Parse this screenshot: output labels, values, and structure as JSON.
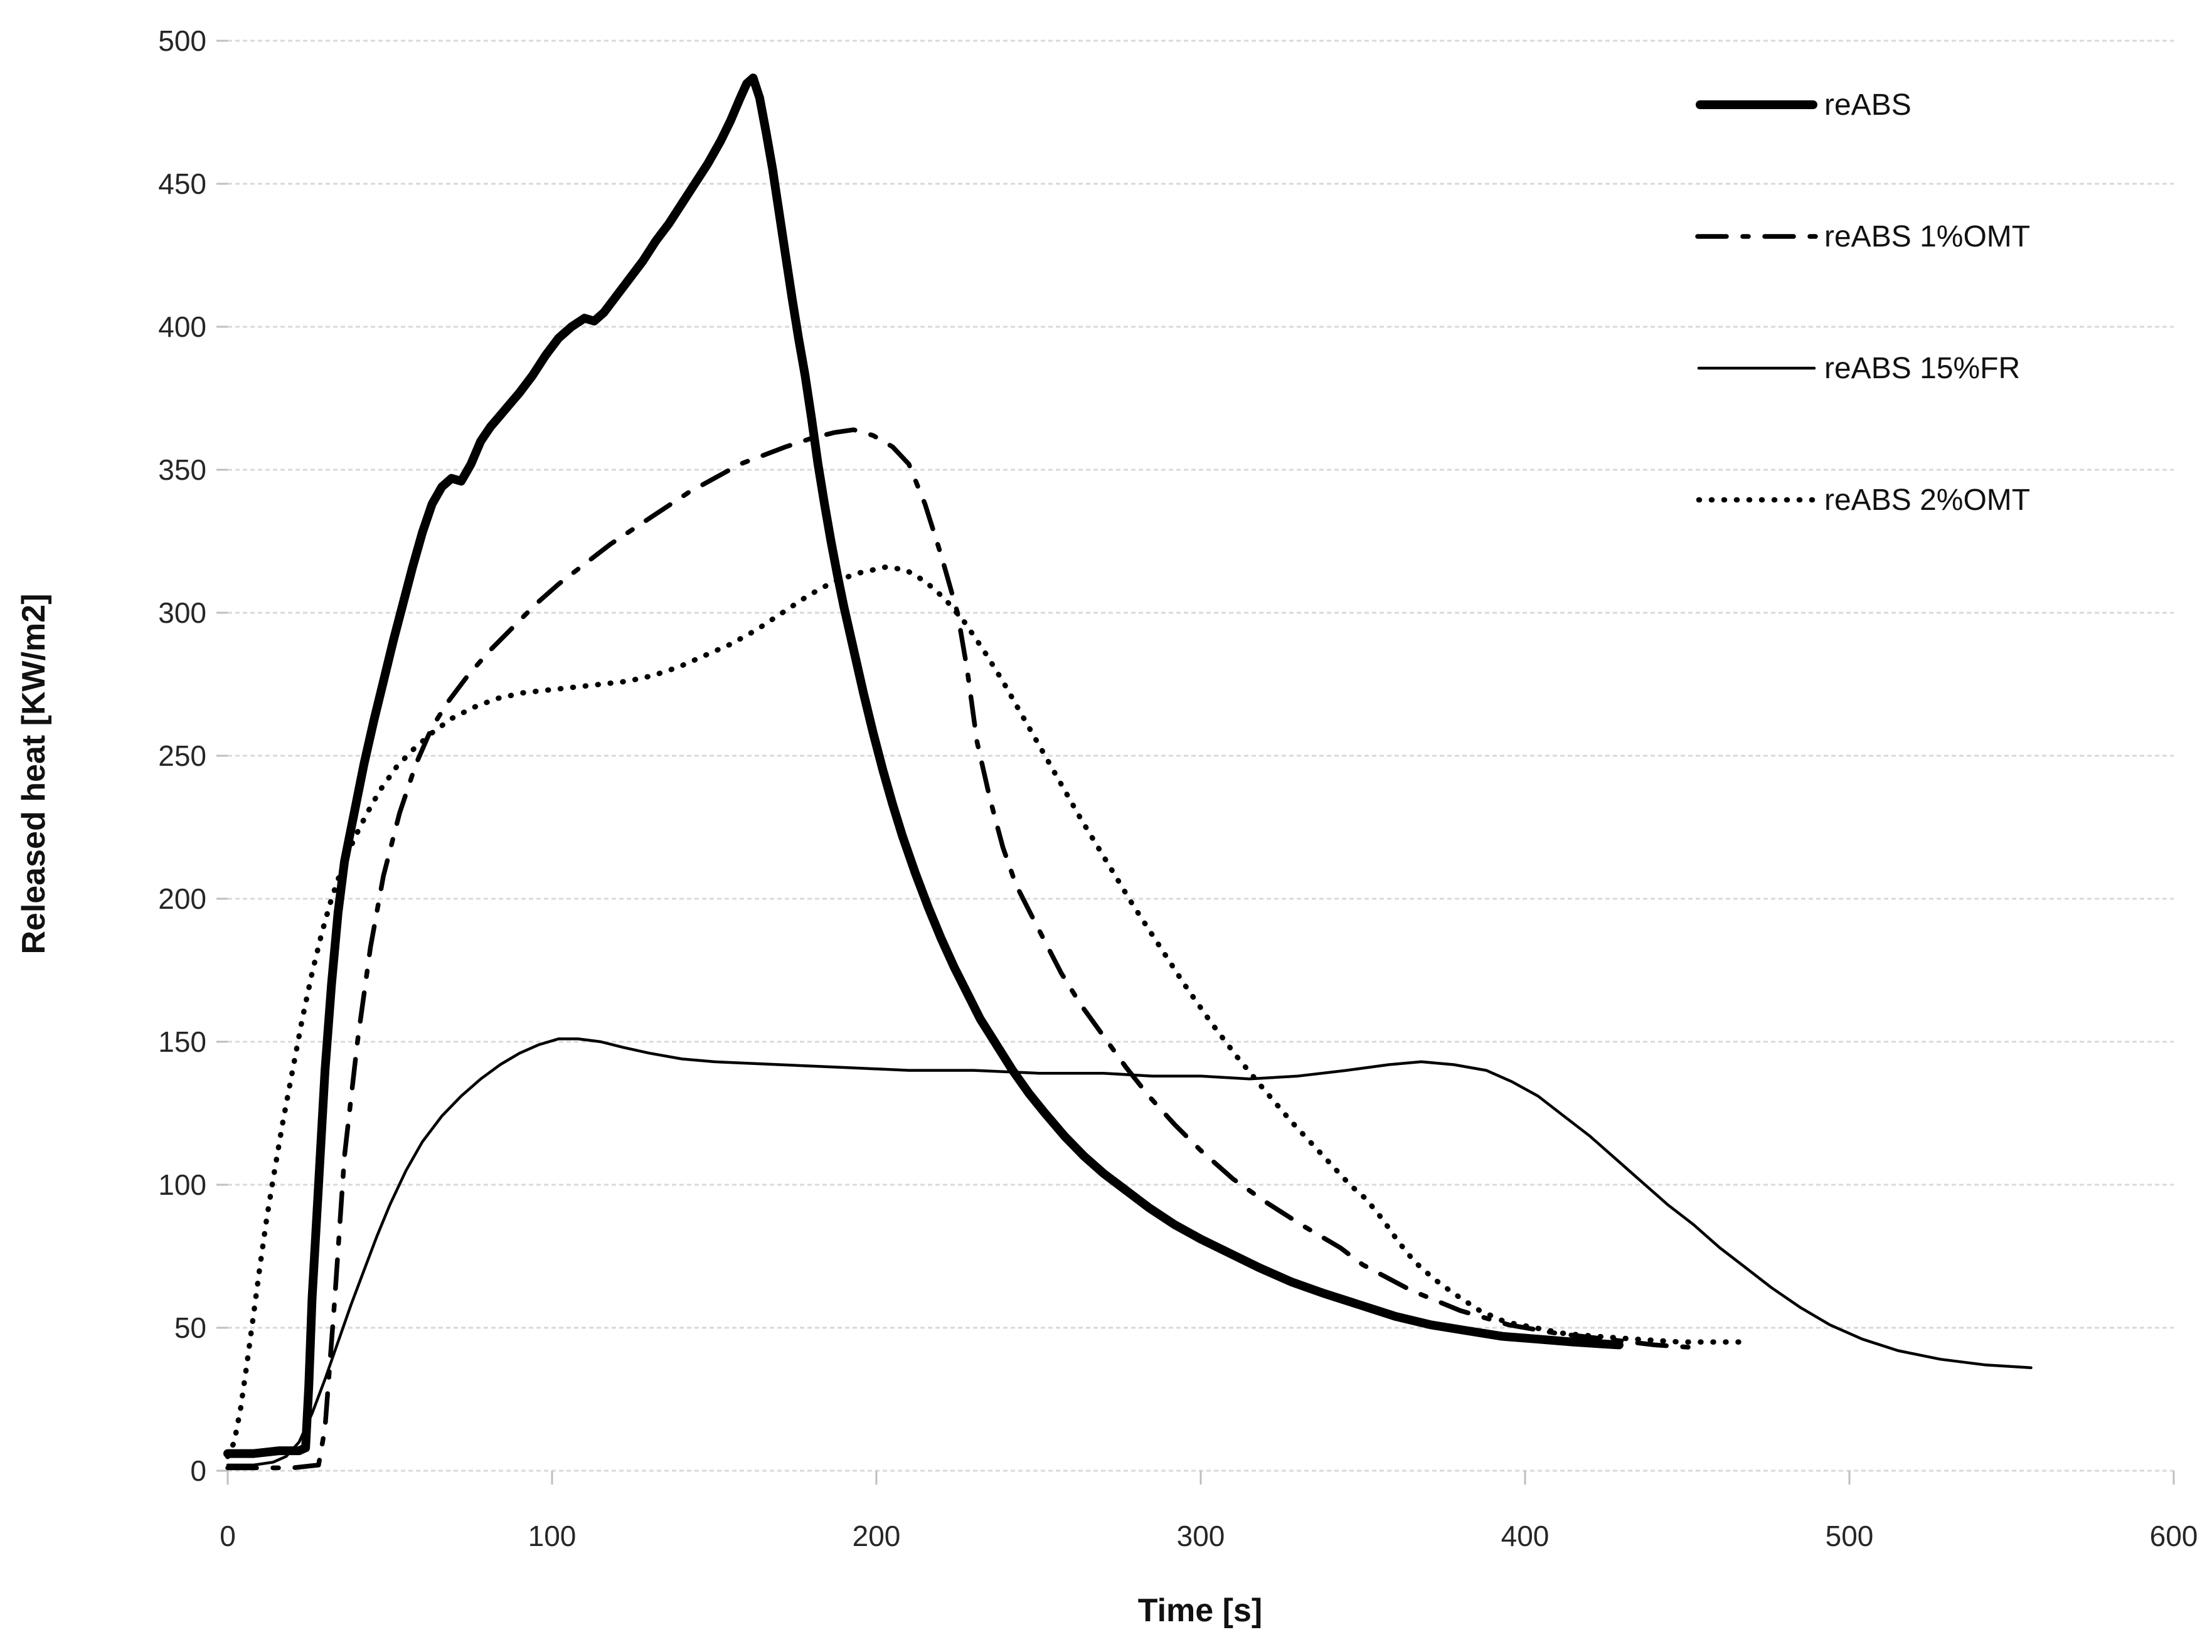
{
  "colors": {
    "line": "#000000",
    "grid": "#d9d9d9",
    "tick": "#bfbfbf",
    "text": "#262626"
  },
  "chart_data": {
    "type": "line",
    "title": "",
    "xlabel": "Time [s]",
    "ylabel": "Released heat [KW/m2]",
    "xlim": [
      0,
      600
    ],
    "ylim": [
      0,
      500
    ],
    "x_ticks": [
      0,
      100,
      200,
      300,
      400,
      500,
      600
    ],
    "y_ticks": [
      0,
      50,
      100,
      150,
      200,
      250,
      300,
      350,
      400,
      450,
      500
    ],
    "grid": true,
    "legend_position": "top-right",
    "series": [
      {
        "name": "reABS",
        "style": "thick-solid",
        "x": [
          0,
          8,
          16,
          22,
          24,
          25,
          26,
          28,
          30,
          32,
          34,
          36,
          39,
          42,
          45,
          48,
          51,
          54,
          57,
          60,
          63,
          66,
          69,
          72,
          75,
          78,
          81,
          84,
          87,
          90,
          94,
          98,
          102,
          106,
          110,
          113,
          116,
          120,
          124,
          128,
          132,
          136,
          140,
          144,
          148,
          152,
          155,
          158,
          160,
          162,
          164,
          166,
          168,
          170,
          172,
          174,
          176,
          178,
          180,
          182,
          184,
          186,
          188,
          190,
          193,
          196,
          199,
          202,
          205,
          208,
          212,
          216,
          220,
          224,
          228,
          232,
          237,
          242,
          247,
          252,
          258,
          264,
          270,
          277,
          284,
          292,
          300,
          309,
          318,
          328,
          338,
          349,
          360,
          371,
          382,
          393,
          404,
          415,
          429
        ],
        "y": [
          6,
          6,
          7,
          7,
          8,
          30,
          60,
          100,
          140,
          170,
          195,
          213,
          230,
          247,
          262,
          276,
          290,
          303,
          316,
          328,
          338,
          344,
          347,
          346,
          352,
          360,
          365,
          369,
          373,
          377,
          383,
          390,
          396,
          400,
          403,
          402,
          405,
          411,
          417,
          423,
          430,
          436,
          443,
          450,
          457,
          465,
          472,
          480,
          485,
          487,
          480,
          468,
          455,
          440,
          425,
          410,
          396,
          383,
          368,
          352,
          338,
          325,
          313,
          302,
          287,
          272,
          258,
          245,
          233,
          222,
          209,
          197,
          186,
          176,
          167,
          158,
          149,
          140,
          132,
          125,
          117,
          110,
          104,
          98,
          92,
          86,
          81,
          76,
          71,
          66,
          62,
          58,
          54,
          51,
          49,
          47,
          46,
          45,
          44
        ]
      },
      {
        "name": "reABS 1%OMT",
        "style": "dash-dot",
        "x": [
          0,
          10,
          20,
          28,
          30,
          33,
          36,
          40,
          44,
          48,
          53,
          58,
          63,
          68,
          74,
          81,
          88,
          95,
          102,
          110,
          118,
          126,
          134,
          142,
          150,
          158,
          165,
          172,
          180,
          187,
          193,
          199,
          205,
          210,
          215,
          220,
          225,
          228,
          231,
          235,
          239,
          243,
          247,
          252,
          257,
          263,
          270,
          277,
          284,
          292,
          300,
          310,
          320,
          331,
          343,
          350,
          365,
          380,
          395,
          410,
          425,
          440,
          453
        ],
        "y": [
          1,
          1,
          1,
          2,
          15,
          60,
          110,
          150,
          183,
          208,
          230,
          247,
          260,
          269,
          278,
          287,
          295,
          303,
          310,
          317,
          324,
          330,
          336,
          342,
          347,
          352,
          355,
          358,
          361,
          363,
          364,
          362,
          358,
          352,
          338,
          320,
          300,
          280,
          255,
          235,
          218,
          205,
          196,
          185,
          174,
          163,
          152,
          141,
          131,
          121,
          112,
          102,
          94,
          86,
          78,
          72,
          63,
          56,
          51,
          48,
          46,
          44,
          43
        ]
      },
      {
        "name": "reABS 15%FR",
        "style": "thin-solid",
        "x": [
          0,
          8,
          14,
          18,
          22,
          26,
          30,
          34,
          38,
          42,
          46,
          50,
          55,
          60,
          66,
          72,
          78,
          84,
          90,
          96,
          102,
          108,
          115,
          122,
          130,
          140,
          150,
          170,
          190,
          210,
          230,
          250,
          270,
          285,
          300,
          315,
          330,
          345,
          358,
          368,
          378,
          388,
          396,
          404,
          412,
          420,
          428,
          436,
          444,
          452,
          460,
          468,
          476,
          485,
          494,
          504,
          515,
          528,
          542,
          556
        ],
        "y": [
          2,
          2,
          3,
          5,
          10,
          20,
          32,
          45,
          58,
          70,
          82,
          93,
          105,
          115,
          124,
          131,
          137,
          142,
          146,
          149,
          151,
          151,
          150,
          148,
          146,
          144,
          143,
          142,
          141,
          140,
          140,
          139,
          139,
          138,
          138,
          137,
          138,
          140,
          142,
          143,
          142,
          140,
          136,
          131,
          124,
          117,
          109,
          101,
          93,
          86,
          78,
          71,
          64,
          57,
          51,
          46,
          42,
          39,
          37,
          36
        ]
      },
      {
        "name": "reABS 2%OMT",
        "style": "dotted",
        "x": [
          0,
          2,
          4,
          6,
          8,
          10,
          12,
          14,
          17,
          20,
          23,
          26,
          29,
          32,
          35,
          39,
          43,
          47,
          52,
          57,
          63,
          69,
          76,
          83,
          91,
          99,
          107,
          115,
          123,
          131,
          139,
          147,
          155,
          163,
          171,
          179,
          187,
          195,
          203,
          209,
          215,
          221,
          227,
          233,
          239,
          245,
          251,
          257,
          263,
          271,
          279,
          287,
          295,
          303,
          311,
          319,
          328,
          337,
          346,
          351,
          356,
          361,
          366,
          372,
          378,
          386,
          394,
          403,
          412,
          422,
          434,
          448,
          460,
          468
        ],
        "y": [
          5,
          10,
          22,
          38,
          55,
          72,
          88,
          102,
          122,
          140,
          158,
          174,
          188,
          200,
          210,
          221,
          230,
          238,
          246,
          252,
          258,
          263,
          267,
          270,
          272,
          273,
          274,
          275,
          276,
          278,
          281,
          285,
          289,
          294,
          300,
          306,
          311,
          314,
          316,
          315,
          311,
          305,
          297,
          287,
          276,
          264,
          252,
          240,
          228,
          213,
          198,
          184,
          170,
          157,
          145,
          134,
          122,
          111,
          100,
          95,
          88,
          80,
          73,
          67,
          62,
          56,
          52,
          50,
          48,
          47,
          46,
          45,
          45,
          45
        ]
      }
    ]
  }
}
